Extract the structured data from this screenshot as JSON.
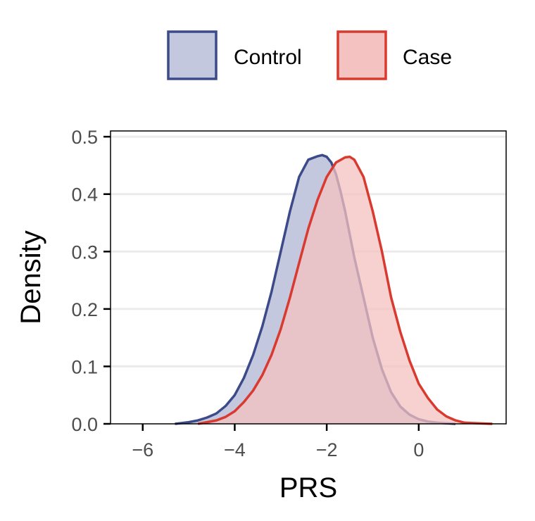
{
  "chart_data": {
    "type": "area",
    "xlabel": "PRS",
    "ylabel": "Density",
    "xlim": [
      -6.7,
      1.9
    ],
    "ylim": [
      0,
      0.51
    ],
    "xticks": [
      -6,
      -4,
      -2,
      0
    ],
    "xtick_labels": [
      "−6",
      "−4",
      "−2",
      "0"
    ],
    "yticks": [
      0.0,
      0.1,
      0.2,
      0.3,
      0.4,
      0.5
    ],
    "ytick_labels": [
      "0.0",
      "0.1",
      "0.2",
      "0.3",
      "0.4",
      "0.5"
    ],
    "grid": "horizontal",
    "legend_position": "top",
    "series": [
      {
        "name": "Control",
        "fill": "#c3c8de",
        "stroke": "#3c4a8a",
        "x": [
          -5.3,
          -5.0,
          -4.8,
          -4.6,
          -4.4,
          -4.2,
          -4.0,
          -3.8,
          -3.6,
          -3.4,
          -3.2,
          -3.0,
          -2.8,
          -2.6,
          -2.4,
          -2.2,
          -2.1,
          -2.0,
          -1.9,
          -1.8,
          -1.7,
          -1.6,
          -1.5,
          -1.4,
          -1.2,
          -1.0,
          -0.8,
          -0.6,
          -0.4,
          -0.2,
          0.0,
          0.2,
          0.4,
          0.6,
          0.8
        ],
        "y": [
          0.0,
          0.003,
          0.006,
          0.011,
          0.018,
          0.031,
          0.05,
          0.08,
          0.12,
          0.17,
          0.23,
          0.3,
          0.37,
          0.43,
          0.46,
          0.466,
          0.468,
          0.465,
          0.455,
          0.435,
          0.405,
          0.37,
          0.33,
          0.29,
          0.22,
          0.15,
          0.095,
          0.055,
          0.03,
          0.016,
          0.008,
          0.004,
          0.002,
          0.001,
          0.0
        ]
      },
      {
        "name": "Case",
        "fill": "#f4c2c0",
        "stroke": "#d93a2f",
        "x": [
          -4.8,
          -4.6,
          -4.4,
          -4.2,
          -4.0,
          -3.8,
          -3.6,
          -3.4,
          -3.2,
          -3.0,
          -2.8,
          -2.6,
          -2.4,
          -2.2,
          -2.0,
          -1.8,
          -1.6,
          -1.5,
          -1.4,
          -1.2,
          -1.0,
          -0.8,
          -0.6,
          -0.4,
          -0.2,
          0.0,
          0.2,
          0.4,
          0.6,
          0.8,
          1.0,
          1.3,
          1.6
        ],
        "y": [
          0.0,
          0.003,
          0.006,
          0.012,
          0.022,
          0.038,
          0.058,
          0.085,
          0.12,
          0.165,
          0.22,
          0.28,
          0.34,
          0.39,
          0.43,
          0.455,
          0.464,
          0.465,
          0.46,
          0.43,
          0.37,
          0.3,
          0.22,
          0.16,
          0.11,
          0.07,
          0.045,
          0.025,
          0.013,
          0.006,
          0.002,
          0.001,
          0.0
        ]
      }
    ]
  }
}
